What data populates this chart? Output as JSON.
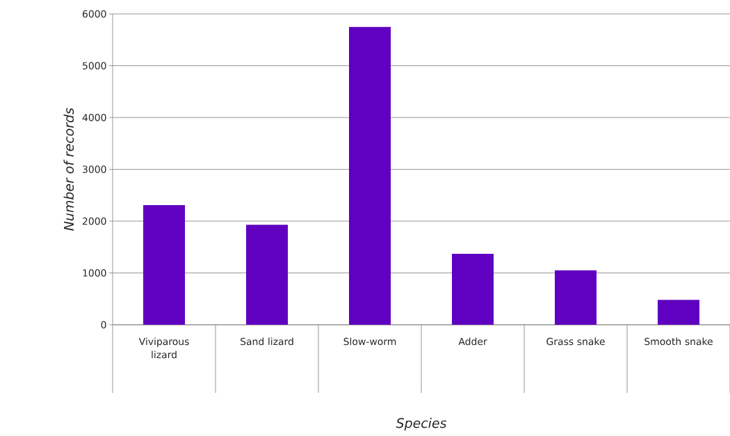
{
  "chart_data": {
    "type": "bar",
    "xlabel": "Species",
    "ylabel": "Number of records",
    "categories": [
      "Viviparous lizard",
      "Sand lizard",
      "Slow-worm",
      "Adder",
      "Grass snake",
      "Smooth snake"
    ],
    "values": [
      2310,
      1930,
      5750,
      1370,
      1050,
      480
    ],
    "color": "#6000c0",
    "ylim": [
      0,
      6000
    ],
    "yticks": [
      0,
      1000,
      2000,
      3000,
      4000,
      5000,
      6000
    ],
    "grid": "y"
  }
}
